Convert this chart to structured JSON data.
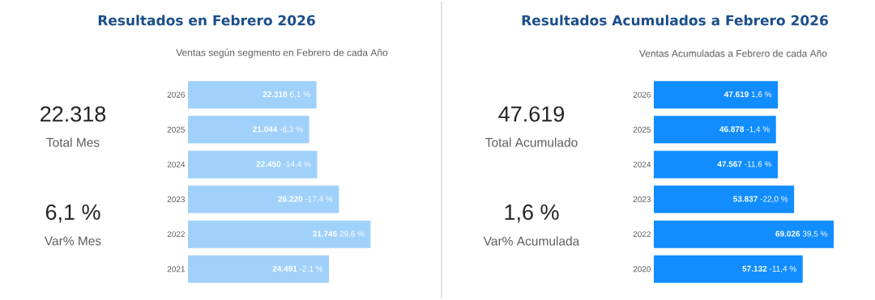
{
  "chart_data": [
    {
      "type": "other",
      "title": "Resultados en Febrero 2026",
      "annotations": [
        "22.318",
        "Total Mes",
        "6,1 %",
        "Var% Mes"
      ]
    },
    {
      "type": "bar",
      "orientation": "horizontal",
      "subtitle": "Ventas según segmento en Febrero de cada Año",
      "categories": [
        "2026",
        "2025",
        "2024",
        "2023",
        "2022",
        "2021"
      ],
      "values": [
        22318,
        21044,
        22450,
        26220,
        31745,
        24491
      ],
      "value_labels": [
        "**22.318** 6,1 %",
        "**21.044** -6,3 %",
        "**22.450** -14,4 %",
        "**26.220** -17,4 %",
        "**31.745** 29,6 %",
        "**24.491** -2,1 %"
      ],
      "color": "#a0d1fb",
      "tick_labels": "y"
    },
    {
      "type": "other",
      "title": "Resultados Acumulados a Febrero 2026",
      "annotations": [
        "47.619",
        "Total Acumulado",
        "1,6 %",
        "Var% Acumulada"
      ]
    },
    {
      "type": "bar",
      "orientation": "horizontal",
      "subtitle": "Ventas Acumuladas a Febrero de cada Año",
      "categories": [
        "2026",
        "2025",
        "2024",
        "2023",
        "2022",
        "2020"
      ],
      "values": [
        47619,
        46878,
        47567,
        53837,
        69026,
        57132
      ],
      "value_labels": [
        "**47.619** 1,6 %",
        "**46.878** -1,4 %",
        "**47.567** -11,6 %",
        "**53.837** -22,0 %",
        "**69.026** 39,5 %",
        "**57.132** -11,4 %"
      ],
      "color": "#118dff",
      "tick_labels": "y"
    }
  ]
}
